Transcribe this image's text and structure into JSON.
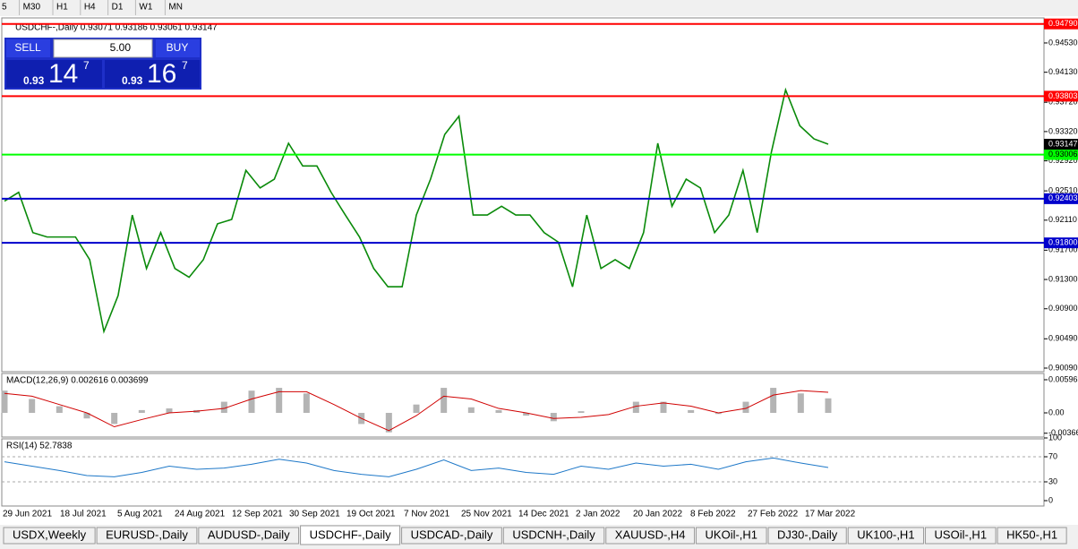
{
  "toolbar": [
    "5",
    "M30",
    "H1",
    "H4",
    "D1",
    "W1",
    "MN"
  ],
  "trade": {
    "sell": "SELL",
    "lots": "5.00",
    "buy": "BUY",
    "bid": {
      "big": "0.93",
      "pips": "14",
      "frac": "7"
    },
    "ask": {
      "big": "0.93",
      "pips": "16",
      "frac": "7"
    }
  },
  "chart_data": [
    {
      "type": "line",
      "title": "USDCHF-,Daily 0.93071 0.93186 0.93061 0.93147",
      "color": "#0a8a0a",
      "values": [
        0.9237,
        0.9249,
        0.9194,
        0.9188,
        0.9188,
        0.9188,
        0.9157,
        0.9059,
        0.9108,
        0.9218,
        0.9145,
        0.9194,
        0.9145,
        0.9133,
        0.9157,
        0.9206,
        0.9212,
        0.9279,
        0.9255,
        0.9267,
        0.9316,
        0.9285,
        0.9285,
        0.9249,
        0.9218,
        0.9188,
        0.9145,
        0.912,
        0.912,
        0.9218,
        0.9267,
        0.9328,
        0.9353,
        0.9218,
        0.9218,
        0.923,
        0.9218,
        0.9218,
        0.9194,
        0.9181,
        0.912,
        0.9218,
        0.9145,
        0.9157,
        0.9145,
        0.9194,
        0.9316,
        0.923,
        0.9267,
        0.9255,
        0.9194,
        0.9218,
        0.9279,
        0.9194,
        0.9304,
        0.9389,
        0.934,
        0.9322,
        0.93147
      ],
      "ylim": [
        0.90041,
        0.94872
      ],
      "yticks": [
        {
          "value": 0.9453,
          "label": "0.94530"
        },
        {
          "value": 0.9413,
          "label": "0.94130"
        },
        {
          "value": 0.9372,
          "label": "0.93720"
        },
        {
          "value": 0.9332,
          "label": "0.93320"
        },
        {
          "value": 0.9292,
          "label": "0.92920"
        },
        {
          "value": 0.9251,
          "label": "0.92510"
        },
        {
          "value": 0.9211,
          "label": "0.92110"
        },
        {
          "value": 0.917,
          "label": "0.91700"
        },
        {
          "value": 0.913,
          "label": "0.91300"
        },
        {
          "value": 0.909,
          "label": "0.90900"
        },
        {
          "value": 0.9049,
          "label": "0.90490"
        },
        {
          "value": 0.9009,
          "label": "0.90090"
        }
      ],
      "levels": [
        {
          "value": 0.9479,
          "label": "0.94790",
          "color": "#ff0000"
        },
        {
          "value": 0.93803,
          "label": "0.93803",
          "color": "#ff0000"
        },
        {
          "value": 0.93006,
          "label": "0.93006",
          "color": "#00ff00"
        },
        {
          "value": 0.92403,
          "label": "0.92403",
          "color": "#0000cc"
        },
        {
          "value": 0.918,
          "label": "0.91800",
          "color": "#0000cc"
        }
      ],
      "current": {
        "value": 0.93147,
        "label": "0.93147"
      },
      "x_labels": [
        "29 Jun 2021",
        "18 Jul 2021",
        "5 Aug 2021",
        "24 Aug 2021",
        "12 Sep 2021",
        "30 Sep 2021",
        "19 Oct 2021",
        "7 Nov 2021",
        "25 Nov 2021",
        "14 Dec 2021",
        "2 Jan 2022",
        "20 Jan 2022",
        "8 Feb 2022",
        "27 Feb 2022",
        "17 Mar 2022"
      ]
    },
    {
      "type": "bar",
      "title": "MACD(12,26,9) 0.002616 0.003699",
      "color": "#b4b4b4",
      "signal_color": "#d00000",
      "values": [
        0.004,
        0.0025,
        0.0012,
        -0.001,
        -0.002,
        0.0005,
        0.0008,
        0.0005,
        0.002,
        0.004,
        0.0045,
        0.0035,
        0.0,
        -0.002,
        -0.0035,
        0.0015,
        0.0045,
        0.001,
        0.0005,
        -0.0005,
        -0.0015,
        0.0003,
        0.0,
        0.002,
        0.002,
        0.0005,
        -0.0002,
        0.002,
        0.0045,
        0.0035,
        0.002616
      ],
      "signal_values": [
        0.0035,
        0.003,
        0.0015,
        0.0,
        -0.0025,
        -0.0012,
        0.0,
        0.0003,
        0.0008,
        0.0025,
        0.0038,
        0.0038,
        0.0015,
        -0.001,
        -0.0032,
        -0.0005,
        0.003,
        0.0025,
        0.0008,
        0.0,
        -0.001,
        -0.0008,
        -0.0003,
        0.0012,
        0.0018,
        0.0012,
        0.0,
        0.0008,
        0.0032,
        0.004,
        0.003699
      ],
      "ylim": [
        -0.00435,
        0.00709
      ],
      "yticks": [
        0.005963,
        {
          "value": 0,
          "label": "0.00"
        },
        {
          "value": -0.003661,
          "label": "-0.003661"
        }
      ]
    },
    {
      "type": "line",
      "title": "RSI(14) 52.7838",
      "color": "#1e78c8",
      "values": [
        62,
        55,
        48,
        40,
        38,
        45,
        55,
        50,
        52,
        58,
        66,
        60,
        48,
        42,
        38,
        50,
        65,
        48,
        52,
        45,
        42,
        55,
        50,
        60,
        55,
        58,
        50,
        62,
        68,
        60,
        52.7838
      ],
      "ylim": [
        0,
        100
      ],
      "yticks": [
        100,
        70,
        30,
        0
      ],
      "grid_ticks": [
        70,
        30
      ]
    }
  ],
  "tabs": [
    "USDX,Weekly",
    "EURUSD-,Daily",
    "AUDUSD-,Daily",
    "USDCHF-,Daily",
    "USDCAD-,Daily",
    "USDCNH-,Daily",
    "XAUUSD-,H4",
    "UKOil-,H1",
    "DJ30-,Daily",
    "UK100-,H1",
    "USOil-,H1",
    "HK50-,H1"
  ],
  "active_tab": 3
}
